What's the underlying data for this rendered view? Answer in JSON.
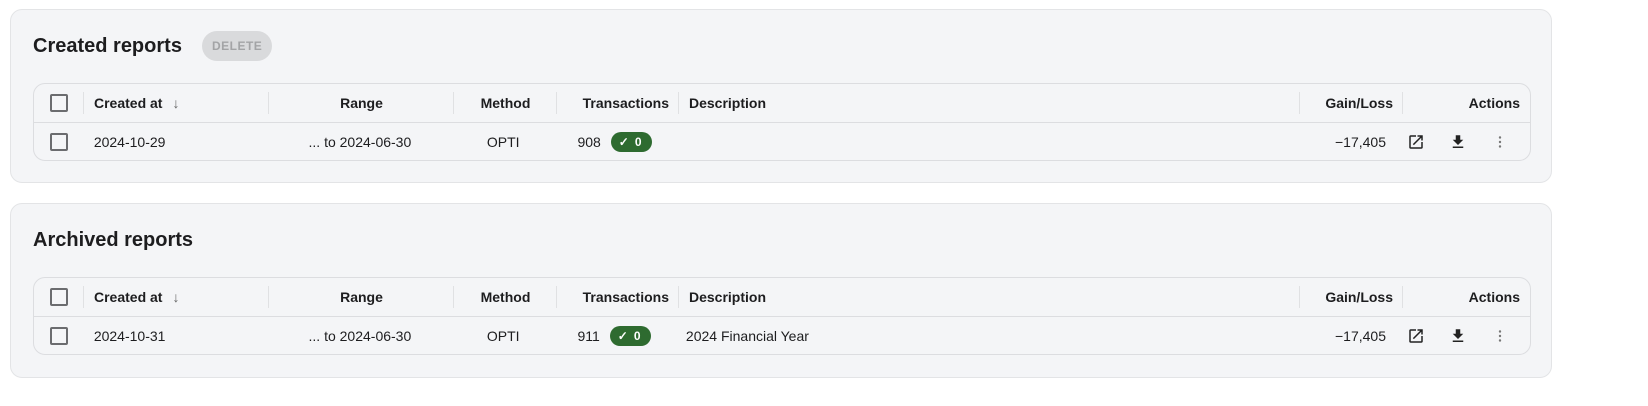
{
  "columns": [
    "Created at",
    "Range",
    "Method",
    "Transactions",
    "Description",
    "Gain/Loss",
    "Actions"
  ],
  "created": {
    "title": "Created reports",
    "delete_label": "DELETE",
    "rows": [
      {
        "created_at": "2024-10-29",
        "range": "... to 2024-06-30",
        "method": "OPTI",
        "transactions": "908",
        "badge": "0",
        "description": "",
        "gain_loss": "−17,405"
      }
    ]
  },
  "archived": {
    "title": "Archived reports",
    "rows": [
      {
        "created_at": "2024-10-31",
        "range": "... to 2024-06-30",
        "method": "OPTI",
        "transactions": "911",
        "badge": "0",
        "description": "2024 Financial Year",
        "gain_loss": "−17,405"
      }
    ]
  },
  "colors": {
    "badge": "#2e6b30",
    "background": "#f4f5f7"
  },
  "icons": [
    "sort-arrow-down-icon",
    "open-external-icon",
    "download-icon",
    "more-vert-icon",
    "check-icon"
  ]
}
